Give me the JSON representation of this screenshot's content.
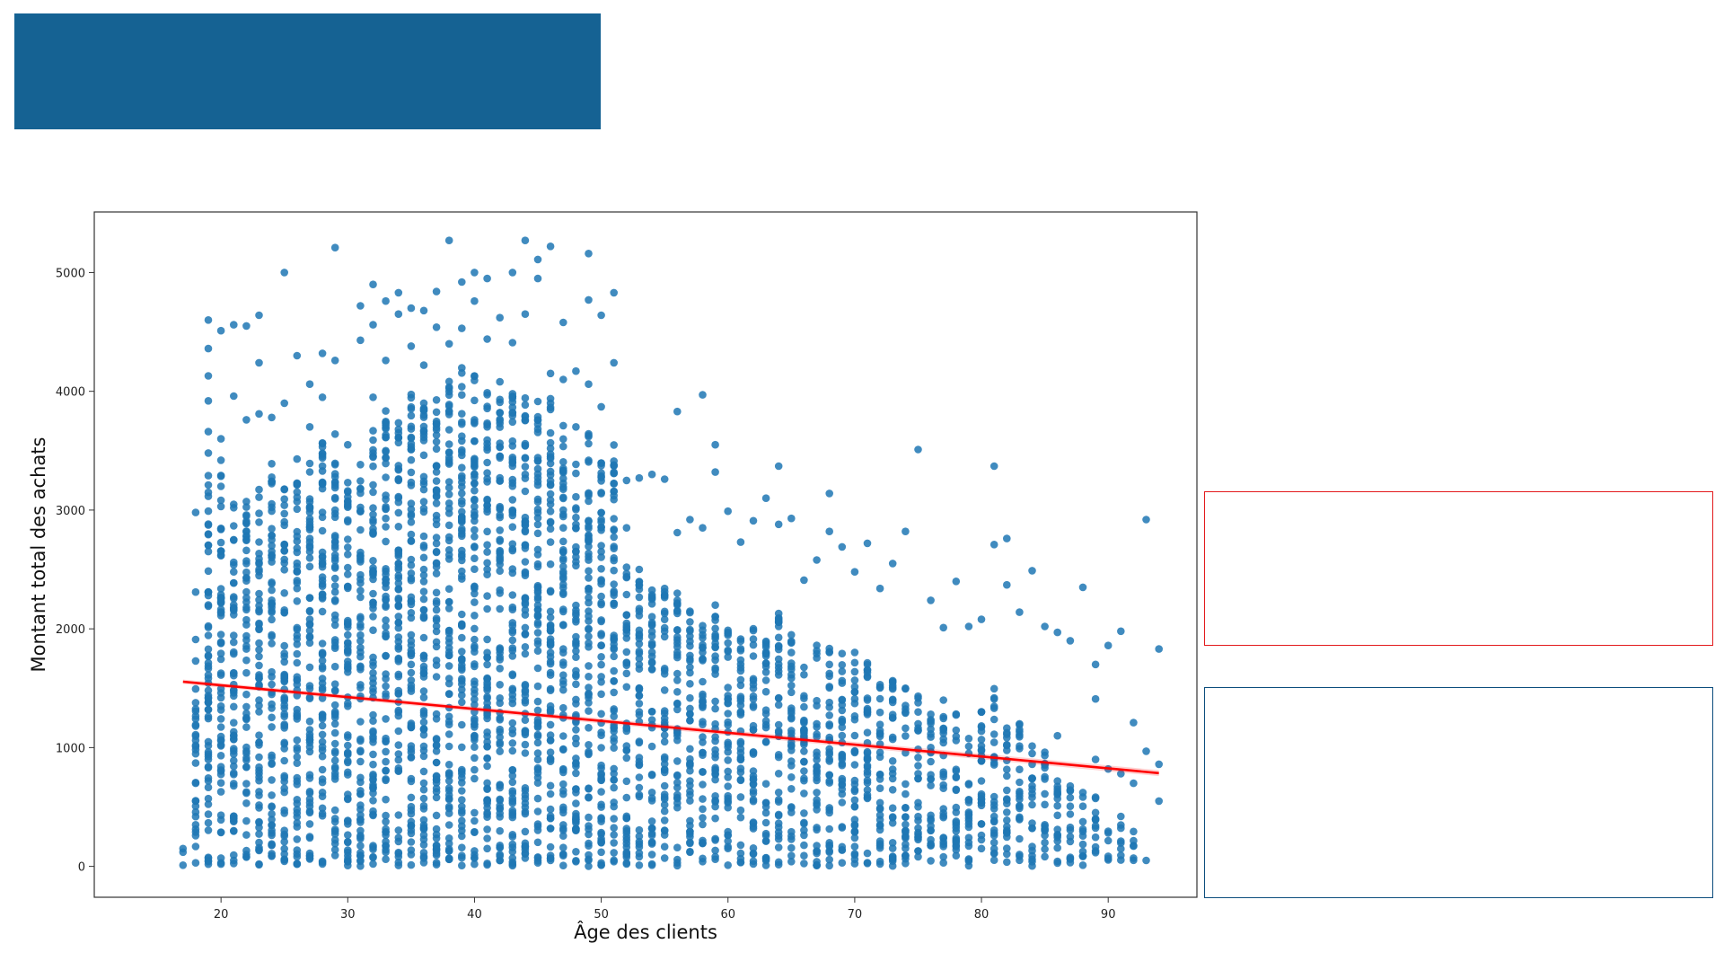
{
  "slide": {
    "banner_color": "#156293",
    "note_box_red_color": "#e31a1c",
    "note_box_blue_color": "#0c4d7d"
  },
  "chart_data": {
    "type": "scatter",
    "xlabel": "Âge des clients",
    "ylabel": "Montant total des achats",
    "xlim": [
      10,
      97
    ],
    "ylim": [
      -260,
      5510
    ],
    "x_ticks": [
      20,
      30,
      40,
      50,
      60,
      70,
      80,
      90
    ],
    "y_ticks": [
      0,
      1000,
      2000,
      3000,
      4000,
      5000
    ],
    "grid": false,
    "point_color": "#1f77b4",
    "regression": {
      "color": "#ff0000",
      "from": [
        17,
        1555
      ],
      "to": [
        94,
        785
      ]
    },
    "series": [
      {
        "values_note_free": true,
        "points": [
          [
            17,
            10
          ],
          [
            17,
            120
          ],
          [
            17,
            150
          ],
          [
            18,
            2310
          ],
          [
            18,
            2980
          ],
          [
            18,
            1730
          ],
          [
            18,
            1910
          ],
          [
            19,
            4600
          ],
          [
            19,
            4360
          ],
          [
            19,
            4130
          ],
          [
            19,
            3920
          ],
          [
            19,
            3660
          ],
          [
            19,
            3480
          ],
          [
            19,
            3290
          ],
          [
            20,
            4510
          ],
          [
            20,
            3600
          ],
          [
            20,
            3420
          ],
          [
            21,
            4560
          ],
          [
            21,
            3960
          ],
          [
            22,
            4550
          ],
          [
            22,
            3760
          ],
          [
            23,
            4640
          ],
          [
            23,
            4240
          ],
          [
            23,
            3810
          ],
          [
            24,
            3780
          ],
          [
            24,
            3390
          ],
          [
            25,
            5000
          ],
          [
            25,
            3900
          ],
          [
            26,
            4300
          ],
          [
            26,
            3430
          ],
          [
            27,
            4060
          ],
          [
            27,
            3700
          ],
          [
            28,
            4320
          ],
          [
            28,
            3950
          ],
          [
            29,
            5210
          ],
          [
            29,
            4260
          ],
          [
            29,
            3640
          ],
          [
            30,
            3550
          ],
          [
            30,
            3110
          ],
          [
            31,
            4430
          ],
          [
            31,
            4720
          ],
          [
            32,
            4900
          ],
          [
            32,
            4560
          ],
          [
            32,
            3950
          ],
          [
            33,
            4760
          ],
          [
            33,
            4260
          ],
          [
            34,
            4830
          ],
          [
            34,
            4650
          ],
          [
            35,
            4700
          ],
          [
            35,
            4380
          ],
          [
            36,
            4680
          ],
          [
            36,
            4220
          ],
          [
            37,
            4840
          ],
          [
            37,
            4540
          ],
          [
            38,
            5270
          ],
          [
            38,
            4400
          ],
          [
            39,
            4920
          ],
          [
            39,
            4530
          ],
          [
            40,
            5000
          ],
          [
            40,
            4760
          ],
          [
            41,
            4950
          ],
          [
            41,
            4440
          ],
          [
            42,
            4620
          ],
          [
            42,
            4080
          ],
          [
            43,
            5000
          ],
          [
            43,
            4410
          ],
          [
            44,
            5270
          ],
          [
            44,
            4650
          ],
          [
            45,
            5110
          ],
          [
            45,
            4950
          ],
          [
            46,
            5220
          ],
          [
            46,
            4150
          ],
          [
            47,
            4580
          ],
          [
            47,
            4100
          ],
          [
            48,
            4170
          ],
          [
            48,
            3700
          ],
          [
            49,
            5160
          ],
          [
            49,
            4770
          ],
          [
            49,
            4060
          ],
          [
            50,
            4640
          ],
          [
            50,
            3870
          ],
          [
            51,
            4830
          ],
          [
            51,
            4240
          ],
          [
            52,
            3250
          ],
          [
            52,
            2850
          ],
          [
            53,
            3270
          ],
          [
            54,
            3300
          ],
          [
            55,
            3260
          ],
          [
            56,
            3830
          ],
          [
            56,
            2810
          ],
          [
            57,
            2920
          ],
          [
            58,
            3970
          ],
          [
            58,
            2850
          ],
          [
            59,
            3550
          ],
          [
            59,
            3320
          ],
          [
            60,
            2990
          ],
          [
            61,
            2730
          ],
          [
            62,
            2910
          ],
          [
            63,
            3100
          ],
          [
            64,
            3370
          ],
          [
            64,
            2880
          ],
          [
            65,
            2930
          ],
          [
            66,
            2410
          ],
          [
            67,
            2580
          ],
          [
            68,
            3140
          ],
          [
            68,
            2820
          ],
          [
            69,
            2690
          ],
          [
            70,
            2480
          ],
          [
            71,
            2720
          ],
          [
            72,
            2340
          ],
          [
            73,
            2550
          ],
          [
            74,
            2820
          ],
          [
            75,
            3510
          ],
          [
            76,
            2240
          ],
          [
            77,
            2010
          ],
          [
            78,
            2400
          ],
          [
            79,
            2020
          ],
          [
            80,
            2080
          ],
          [
            81,
            3370
          ],
          [
            81,
            2710
          ],
          [
            82,
            2760
          ],
          [
            82,
            2370
          ],
          [
            83,
            2140
          ],
          [
            84,
            2490
          ],
          [
            85,
            2020
          ],
          [
            86,
            1970
          ],
          [
            87,
            1900
          ],
          [
            88,
            2350
          ],
          [
            89,
            1700
          ],
          [
            89,
            1410
          ],
          [
            90,
            1860
          ],
          [
            91,
            1980
          ],
          [
            92,
            1210
          ],
          [
            93,
            2920
          ],
          [
            93,
            970
          ],
          [
            94,
            1830
          ],
          [
            94,
            860
          ],
          [
            94,
            550
          ],
          [
            93,
            50
          ],
          [
            92,
            70
          ],
          [
            91,
            780
          ],
          [
            90,
            820
          ],
          [
            89,
            400
          ],
          [
            88,
            10
          ],
          [
            87,
            250
          ],
          [
            86,
            570
          ],
          [
            85,
            200
          ],
          [
            84,
            40
          ],
          [
            83,
            100
          ],
          [
            82,
            280
          ],
          [
            81,
            420
          ],
          [
            80,
            150
          ],
          [
            79,
            330
          ],
          [
            78,
            90
          ],
          [
            77,
            30
          ],
          [
            76,
            190
          ],
          [
            75,
            80
          ],
          [
            74,
            300
          ],
          [
            73,
            60
          ],
          [
            72,
            20
          ],
          [
            71,
            110
          ],
          [
            70,
            60
          ],
          [
            69,
            30
          ],
          [
            68,
            130
          ],
          [
            67,
            10
          ],
          [
            66,
            90
          ],
          [
            65,
            40
          ],
          [
            64,
            160
          ],
          [
            63,
            60
          ],
          [
            62,
            20
          ],
          [
            61,
            110
          ],
          [
            60,
            10
          ],
          [
            59,
            60
          ],
          [
            58,
            40
          ],
          [
            57,
            120
          ],
          [
            56,
            30
          ],
          [
            55,
            70
          ],
          [
            54,
            10
          ],
          [
            53,
            80
          ],
          [
            52,
            20
          ],
          [
            51,
            40
          ],
          [
            50,
            120
          ],
          [
            49,
            60
          ],
          [
            48,
            40
          ],
          [
            47,
            90
          ],
          [
            46,
            50
          ],
          [
            45,
            30
          ],
          [
            44,
            110
          ],
          [
            43,
            70
          ],
          [
            42,
            100
          ],
          [
            41,
            150
          ],
          [
            40,
            130
          ],
          [
            39,
            90
          ],
          [
            38,
            60
          ],
          [
            37,
            110
          ],
          [
            36,
            70
          ],
          [
            35,
            100
          ],
          [
            34,
            80
          ],
          [
            33,
            120
          ],
          [
            32,
            20
          ],
          [
            31,
            90
          ],
          [
            30,
            60
          ],
          [
            29,
            140
          ],
          [
            28,
            20
          ],
          [
            27,
            110
          ],
          [
            26,
            80
          ],
          [
            25,
            60
          ],
          [
            24,
            90
          ],
          [
            23,
            20
          ],
          [
            22,
            80
          ],
          [
            21,
            50
          ],
          [
            20,
            70
          ],
          [
            19,
            40
          ],
          [
            18,
            30
          ],
          [
            18,
            700
          ],
          [
            19,
            900
          ],
          [
            24,
            2700
          ],
          [
            29,
            3000
          ],
          [
            33,
            3500
          ],
          [
            36,
            3900
          ],
          [
            38,
            3400
          ],
          [
            41,
            3700
          ],
          [
            44,
            3300
          ],
          [
            47,
            3000
          ],
          [
            50,
            2900
          ],
          [
            53,
            2500
          ],
          [
            56,
            2300
          ],
          [
            59,
            2200
          ],
          [
            62,
            2000
          ],
          [
            65,
            1800
          ],
          [
            68,
            1700
          ],
          [
            71,
            1600
          ],
          [
            74,
            1500
          ],
          [
            77,
            1400
          ],
          [
            80,
            1300
          ],
          [
            83,
            1200
          ],
          [
            86,
            1100
          ],
          [
            89,
            900
          ],
          [
            92,
            700
          ]
        ]
      }
    ],
    "columns": [
      {
        "age": 18,
        "top": 1500
      },
      {
        "age": 19,
        "top": 3300
      },
      {
        "age": 20,
        "top": 3300
      },
      {
        "age": 21,
        "top": 3100
      },
      {
        "age": 22,
        "top": 3100
      },
      {
        "age": 23,
        "top": 3200
      },
      {
        "age": 24,
        "top": 3300
      },
      {
        "age": 25,
        "top": 3300
      },
      {
        "age": 26,
        "top": 3350
      },
      {
        "age": 27,
        "top": 3400
      },
      {
        "age": 28,
        "top": 3600
      },
      {
        "age": 29,
        "top": 3500
      },
      {
        "age": 30,
        "top": 3450
      },
      {
        "age": 31,
        "top": 3550
      },
      {
        "age": 32,
        "top": 3750
      },
      {
        "age": 33,
        "top": 3850
      },
      {
        "age": 34,
        "top": 3950
      },
      {
        "age": 35,
        "top": 4100
      },
      {
        "age": 36,
        "top": 4000
      },
      {
        "age": 37,
        "top": 4050
      },
      {
        "age": 38,
        "top": 4100
      },
      {
        "age": 39,
        "top": 4200
      },
      {
        "age": 40,
        "top": 4150
      },
      {
        "age": 41,
        "top": 4050
      },
      {
        "age": 42,
        "top": 3950
      },
      {
        "age": 43,
        "top": 4100
      },
      {
        "age": 44,
        "top": 4000
      },
      {
        "age": 45,
        "top": 4000
      },
      {
        "age": 46,
        "top": 3950
      },
      {
        "age": 47,
        "top": 3750
      },
      {
        "age": 48,
        "top": 3450
      },
      {
        "age": 49,
        "top": 3650
      },
      {
        "age": 50,
        "top": 3450
      },
      {
        "age": 51,
        "top": 3550
      },
      {
        "age": 52,
        "top": 2550
      },
      {
        "age": 53,
        "top": 2450
      },
      {
        "age": 54,
        "top": 2350
      },
      {
        "age": 55,
        "top": 2350
      },
      {
        "age": 56,
        "top": 2250
      },
      {
        "age": 57,
        "top": 2200
      },
      {
        "age": 58,
        "top": 2150
      },
      {
        "age": 59,
        "top": 2150
      },
      {
        "age": 60,
        "top": 2050
      },
      {
        "age": 61,
        "top": 2000
      },
      {
        "age": 62,
        "top": 2000
      },
      {
        "age": 63,
        "top": 1950
      },
      {
        "age": 64,
        "top": 2150
      },
      {
        "age": 65,
        "top": 1950
      },
      {
        "age": 66,
        "top": 1800
      },
      {
        "age": 67,
        "top": 1900
      },
      {
        "age": 68,
        "top": 1850
      },
      {
        "age": 69,
        "top": 1800
      },
      {
        "age": 70,
        "top": 1850
      },
      {
        "age": 71,
        "top": 1750
      },
      {
        "age": 72,
        "top": 1650
      },
      {
        "age": 73,
        "top": 1650
      },
      {
        "age": 74,
        "top": 1500
      },
      {
        "age": 75,
        "top": 1450
      },
      {
        "age": 76,
        "top": 1350
      },
      {
        "age": 77,
        "top": 1300
      },
      {
        "age": 78,
        "top": 1350
      },
      {
        "age": 79,
        "top": 1150
      },
      {
        "age": 80,
        "top": 1350
      },
      {
        "age": 81,
        "top": 1500
      },
      {
        "age": 82,
        "top": 1250
      },
      {
        "age": 83,
        "top": 1200
      },
      {
        "age": 84,
        "top": 1100
      },
      {
        "age": 85,
        "top": 1000
      },
      {
        "age": 86,
        "top": 900
      },
      {
        "age": 87,
        "top": 700
      },
      {
        "age": 88,
        "top": 650
      },
      {
        "age": 89,
        "top": 600
      },
      {
        "age": 90,
        "top": 350
      },
      {
        "age": 91,
        "top": 450
      },
      {
        "age": 92,
        "top": 300
      }
    ]
  }
}
